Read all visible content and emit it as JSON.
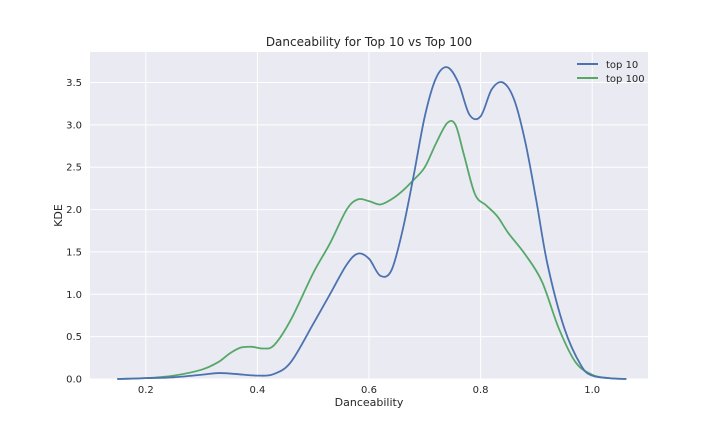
{
  "chart_data": {
    "type": "line",
    "title": "Danceability for Top 10 vs Top 100",
    "xlabel": "Danceability",
    "ylabel": "KDE",
    "xlim": [
      0.1,
      1.1
    ],
    "ylim": [
      0.0,
      3.86
    ],
    "xticks": [
      0.2,
      0.4,
      0.6,
      0.8,
      1.0
    ],
    "xtick_labels": [
      "0.2",
      "0.4",
      "0.6",
      "0.8",
      "1.0"
    ],
    "yticks": [
      0.0,
      0.5,
      1.0,
      1.5,
      2.0,
      2.5,
      3.0,
      3.5
    ],
    "ytick_labels": [
      "0.0",
      "0.5",
      "1.0",
      "1.5",
      "2.0",
      "2.5",
      "3.0",
      "3.5"
    ],
    "grid": true,
    "background": "#eaeaf2",
    "legend_position": "top-right",
    "series": [
      {
        "name": "top 10",
        "color": "#4c72b0",
        "x": [
          0.15,
          0.2,
          0.25,
          0.3,
          0.33,
          0.36,
          0.4,
          0.43,
          0.46,
          0.5,
          0.53,
          0.56,
          0.58,
          0.6,
          0.62,
          0.64,
          0.66,
          0.68,
          0.7,
          0.72,
          0.74,
          0.76,
          0.78,
          0.8,
          0.82,
          0.84,
          0.86,
          0.88,
          0.9,
          0.92,
          0.95,
          0.98,
          1.0,
          1.03,
          1.06
        ],
        "y": [
          0.0,
          0.01,
          0.02,
          0.05,
          0.07,
          0.06,
          0.04,
          0.06,
          0.2,
          0.65,
          1.0,
          1.35,
          1.48,
          1.42,
          1.22,
          1.28,
          1.75,
          2.4,
          3.1,
          3.55,
          3.68,
          3.5,
          3.12,
          3.1,
          3.42,
          3.5,
          3.3,
          2.8,
          2.1,
          1.35,
          0.6,
          0.16,
          0.04,
          0.01,
          0.0
        ]
      },
      {
        "name": "top 100",
        "color": "#55a868",
        "x": [
          0.15,
          0.2,
          0.25,
          0.3,
          0.33,
          0.35,
          0.37,
          0.39,
          0.41,
          0.43,
          0.46,
          0.5,
          0.53,
          0.56,
          0.58,
          0.6,
          0.62,
          0.64,
          0.66,
          0.68,
          0.7,
          0.72,
          0.74,
          0.755,
          0.77,
          0.79,
          0.81,
          0.83,
          0.85,
          0.88,
          0.91,
          0.94,
          0.97,
          1.0,
          1.03,
          1.06
        ],
        "y": [
          0.0,
          0.01,
          0.04,
          0.11,
          0.2,
          0.3,
          0.37,
          0.38,
          0.36,
          0.4,
          0.7,
          1.25,
          1.6,
          2.0,
          2.12,
          2.1,
          2.06,
          2.12,
          2.22,
          2.35,
          2.5,
          2.78,
          3.02,
          3.0,
          2.65,
          2.18,
          2.05,
          1.92,
          1.72,
          1.47,
          1.15,
          0.6,
          0.2,
          0.05,
          0.01,
          0.0
        ]
      }
    ]
  }
}
